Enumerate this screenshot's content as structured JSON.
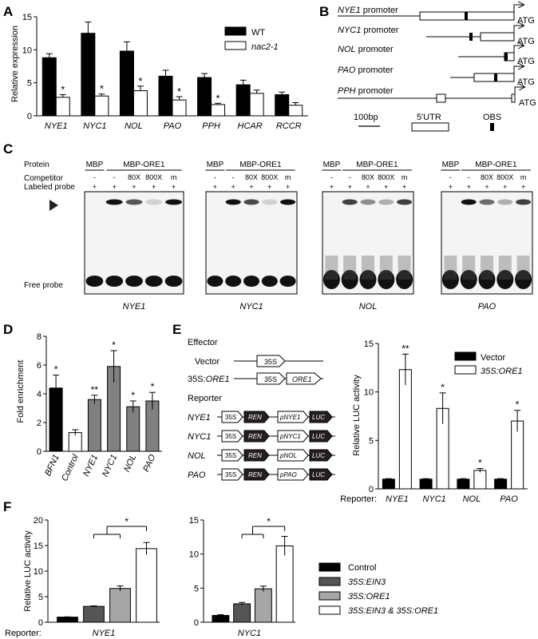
{
  "panels": {
    "A": {
      "letter": "A",
      "chart_data": {
        "type": "bar",
        "ylabel": "Relative expression",
        "ylim": [
          0,
          15
        ],
        "yticks": [
          0,
          5,
          10,
          15
        ],
        "categories": [
          "NYE1",
          "NYC1",
          "NOL",
          "PAO",
          "PPH",
          "HCAR",
          "RCCR"
        ],
        "series": [
          {
            "name": "WT",
            "values": [
              8.8,
              12.5,
              9.8,
              6.0,
              5.8,
              4.7,
              3.2
            ],
            "errors": [
              0.6,
              1.7,
              1.4,
              0.9,
              0.6,
              0.7,
              0.4
            ],
            "color": "#000000"
          },
          {
            "name": "nac2-1",
            "values": [
              2.8,
              3.0,
              3.8,
              2.4,
              1.7,
              3.4,
              1.6
            ],
            "errors": [
              0.4,
              0.3,
              0.7,
              0.5,
              0.2,
              0.5,
              0.4
            ],
            "color": "#ffffff"
          }
        ],
        "significance": [
          "*",
          "*",
          "*",
          "*",
          "*",
          "",
          ""
        ]
      }
    },
    "B": {
      "letter": "B",
      "promoters": [
        {
          "label": "NYE1",
          "suffix": " promoter"
        },
        {
          "label": "NYC1",
          "suffix": " promoter"
        },
        {
          "label": "NOL",
          "suffix": " promoter"
        },
        {
          "label": "PAO",
          "suffix": " promoter"
        },
        {
          "label": "PPH",
          "suffix": " promoter"
        }
      ],
      "atg": "ATG",
      "legend": {
        "scale": "100bp",
        "utr": "5'UTR",
        "obs": "OBS"
      }
    },
    "C": {
      "letter": "C",
      "row_protein": "Protein",
      "row_competitor": "Competitor",
      "row_probe": "Labeled probe",
      "free_probe": "Free probe",
      "mbp": "MBP",
      "mbp_ore1": "MBP-ORE1",
      "competitor_values": [
        "-",
        "-",
        "80X",
        "800X",
        "m"
      ],
      "probe_values": [
        "+",
        "+",
        "+",
        "+",
        "+"
      ],
      "gels": [
        "NYE1",
        "NYC1",
        "NOL",
        "PAO"
      ]
    },
    "D": {
      "letter": "D",
      "chart_data": {
        "type": "bar",
        "ylabel": "Fold enrichment",
        "ylim": [
          0,
          8
        ],
        "yticks": [
          0,
          2,
          4,
          6,
          8
        ],
        "categories": [
          "BFN1",
          "Control",
          "NYE1",
          "NYC1",
          "NOL",
          "PAO"
        ],
        "values": [
          4.4,
          1.3,
          3.6,
          5.9,
          3.1,
          3.5
        ],
        "errors": [
          0.9,
          0.2,
          0.3,
          1.1,
          0.4,
          0.6
        ],
        "colors": [
          "#000000",
          "#ffffff",
          "#808080",
          "#808080",
          "#808080",
          "#808080"
        ],
        "significance": [
          "*",
          "",
          "**",
          "*",
          "*",
          "*"
        ]
      }
    },
    "E": {
      "letter": "E",
      "effector_title": "Effector",
      "vector_label": "Vector",
      "ore1_prefix": "35S:",
      "ore1_label": "ORE1",
      "p35s": "35S",
      "ore1_box": "ORE1",
      "reporter_title": "Reporter",
      "reporters": [
        {
          "name": "NYE1",
          "p": "pNYE1"
        },
        {
          "name": "NYC1",
          "p": "pNYC1"
        },
        {
          "name": "NOL",
          "p": "pNOL"
        },
        {
          "name": "PAO",
          "p": "pPAO"
        }
      ],
      "ren": "REN",
      "luc": "LUC",
      "chart_data": {
        "type": "bar",
        "ylabel": "Relative LUC activity",
        "ylim": [
          0,
          15
        ],
        "yticks": [
          0,
          5,
          10,
          15
        ],
        "xprefix": "Reporter:",
        "categories": [
          "NYE1",
          "NYC1",
          "NOL",
          "PAO"
        ],
        "series": [
          {
            "name": "Vector",
            "values": [
              1.0,
              1.0,
              1.0,
              1.0
            ],
            "errors": [
              0.05,
              0.05,
              0.05,
              0.05
            ],
            "color": "#000000"
          },
          {
            "name": "35S:ORE1",
            "values": [
              12.3,
              8.3,
              1.9,
              7.0
            ],
            "errors": [
              1.6,
              1.6,
              0.2,
              1.1
            ],
            "color": "#ffffff"
          }
        ],
        "significance": [
          "**",
          "*",
          "*",
          "*"
        ]
      }
    },
    "F": {
      "letter": "F",
      "xprefix": "Reporter:",
      "legend": [
        "Control",
        "35S:EIN3",
        "35S:ORE1",
        "35S:EIN3 & 35S:ORE1"
      ],
      "colors": [
        "#000000",
        "#555555",
        "#a6a6a6",
        "#ffffff"
      ],
      "charts": [
        {
          "type": "bar",
          "ylabel": "Relative LUC activity",
          "ylim": [
            0,
            20
          ],
          "yticks": [
            0,
            5,
            10,
            15,
            20
          ],
          "category": "NYE1",
          "values": [
            1.0,
            3.1,
            6.6,
            14.4
          ],
          "errors": [
            0.05,
            0.1,
            0.5,
            1.2
          ],
          "significance": "*"
        },
        {
          "type": "bar",
          "ylabel": "",
          "ylim": [
            0,
            15
          ],
          "yticks": [
            0,
            5,
            10,
            15
          ],
          "category": "NYC1",
          "values": [
            1.0,
            2.7,
            4.9,
            11.2
          ],
          "errors": [
            0.1,
            0.2,
            0.4,
            1.4
          ],
          "significance": "*"
        }
      ]
    }
  }
}
